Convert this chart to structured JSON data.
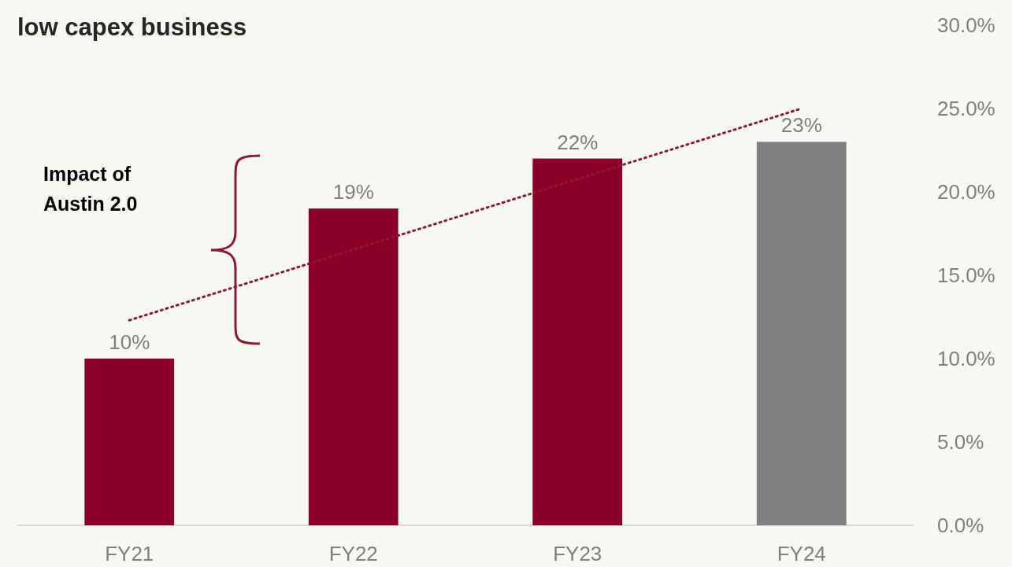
{
  "chart_data": {
    "type": "bar",
    "title": "low capex business",
    "categories": [
      "FY21",
      "FY22",
      "FY23",
      "FY24"
    ],
    "series": [
      {
        "values": [
          10,
          19,
          22,
          23
        ],
        "colors": [
          "#8b0029",
          "#8b0029",
          "#8b0029",
          "#808080"
        ],
        "value_labels": [
          "10%",
          "19%",
          "22%",
          "23%"
        ]
      },
      {
        "type": "line",
        "x": [
          "FY21",
          "FY24"
        ],
        "values": [
          12.3,
          25.0
        ],
        "color": "#8b1a2e",
        "line_style": "dotted",
        "marker": "none"
      }
    ],
    "ylim": [
      0,
      30
    ],
    "yticks": [
      {
        "value": 0,
        "label": "0.0%"
      },
      {
        "value": 5,
        "label": "5.0%"
      },
      {
        "value": 10,
        "label": "10.0%"
      },
      {
        "value": 15,
        "label": "15.0%"
      },
      {
        "value": 20,
        "label": "20.0%"
      },
      {
        "value": 25,
        "label": "25.0%"
      },
      {
        "value": 30,
        "label": "30.0%"
      }
    ],
    "annotations": [
      "Impact of Austin 2.0"
    ],
    "grid": false
  }
}
